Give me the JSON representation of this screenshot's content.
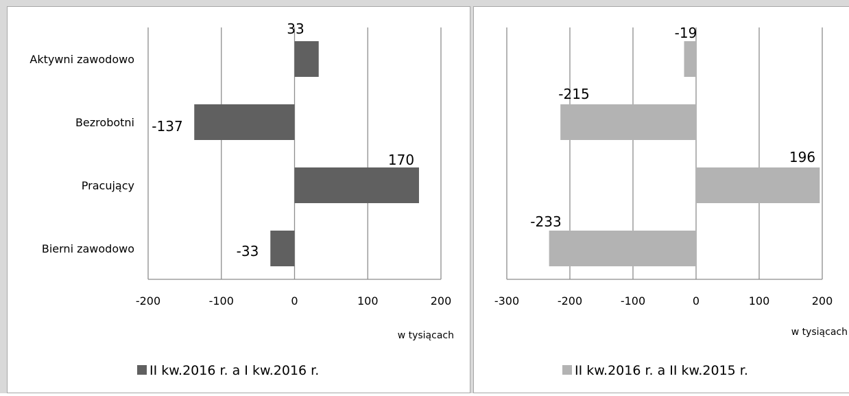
{
  "chart_data": [
    {
      "type": "bar",
      "orientation": "horizontal",
      "categories": [
        "Aktywni zawodowo",
        "Bezrobotni",
        "Pracujący",
        "Bierni zawodowo"
      ],
      "series": [
        {
          "name": "II kw.2016 r. a I kw.2016 r.",
          "values": [
            33,
            -137,
            170,
            -33
          ],
          "color": "#606060"
        }
      ],
      "data_labels": [
        "33",
        "-137",
        "170",
        "-33"
      ],
      "xlim": [
        -200,
        200
      ],
      "xticks": [
        -200,
        -100,
        0,
        100,
        200
      ],
      "xtick_labels": [
        "-200",
        "-100",
        "0",
        "100",
        "200"
      ],
      "xlabel": "w tysiącach",
      "legend_position": "bottom",
      "grid": "vertical"
    },
    {
      "type": "bar",
      "orientation": "horizontal",
      "categories": [
        "Aktywni zawodowo",
        "Bezrobotni",
        "Pracujący",
        "Bierni zawodowo"
      ],
      "series": [
        {
          "name": "II kw.2016 r. a II kw.2015 r.",
          "values": [
            -19,
            -215,
            196,
            -233
          ],
          "color": "#b3b3b3"
        }
      ],
      "data_labels": [
        "-19",
        "-215",
        "196",
        "-233"
      ],
      "xlim": [
        -300,
        200
      ],
      "xticks": [
        -300,
        -200,
        -100,
        0,
        100,
        200
      ],
      "xtick_labels": [
        "-300",
        "-200",
        "-100",
        "0",
        "100",
        "200"
      ],
      "xlabel": "w tysiącach",
      "legend_position": "bottom",
      "grid": "vertical"
    }
  ]
}
